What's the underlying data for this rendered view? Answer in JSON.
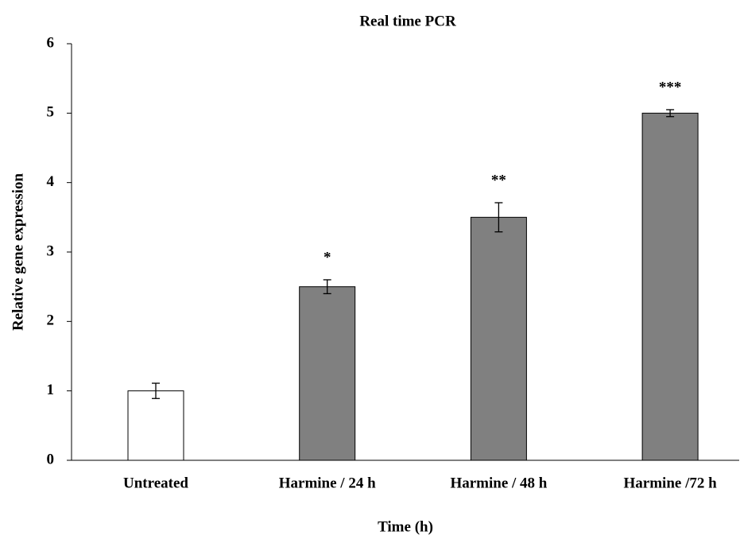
{
  "chart_data": {
    "type": "bar",
    "title": "Real time PCR",
    "x_label": "Time (h)",
    "y_label": "Relative gene expression",
    "categories": [
      "Untreated",
      "Harmine / 24 h",
      "Harmine / 48 h",
      "Harmine /72 h"
    ],
    "values": [
      1.0,
      2.5,
      3.5,
      5.0
    ],
    "errors": [
      0.11,
      0.1,
      0.21,
      0.05
    ],
    "annotations": [
      null,
      "*",
      "**",
      "***"
    ],
    "colors": [
      "#ffffff",
      "#808080",
      "#808080",
      "#808080"
    ],
    "ylim": [
      0,
      6
    ],
    "yticks": [
      0,
      1,
      2,
      3,
      4,
      5,
      6
    ],
    "grid": false
  }
}
